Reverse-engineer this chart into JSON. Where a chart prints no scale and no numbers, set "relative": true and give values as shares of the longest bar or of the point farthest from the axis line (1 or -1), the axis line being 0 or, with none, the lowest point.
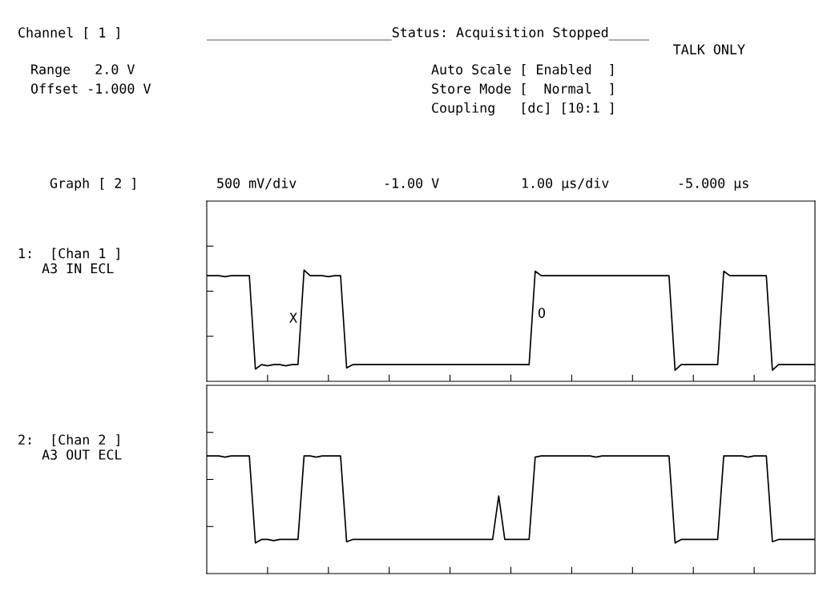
{
  "chart_data": [
    {
      "type": "other",
      "annotations": [
        "Channel [ 1 ]",
        "_______________________Status: Acquisition Stopped_____",
        "TALK ONLY",
        "Range   2.0 V",
        "Offset -1.000 V",
        "Auto Scale [ Enabled  ]",
        "Store Mode [  Normal  ]",
        "Coupling   [dc] [10:1 ]",
        "Graph [ 2 ]",
        "500 mV/div",
        "-1.00 V",
        "1.00 µs/div",
        "-5.000 µs",
        "X",
        "O"
      ]
    },
    {
      "type": "line",
      "relative": true,
      "ylabel": "1:  [Chan 1 ]\n   A3 IN ECL",
      "categories": [
        null,
        null,
        null,
        null,
        null,
        null,
        null,
        null,
        null,
        null,
        null,
        null,
        null,
        null,
        null,
        null,
        null,
        null,
        null,
        null,
        null,
        null,
        null,
        null,
        null,
        null,
        null,
        null,
        null,
        null,
        null,
        null,
        null,
        null,
        null,
        null,
        null,
        null,
        null,
        null,
        null,
        null,
        null,
        null,
        null,
        null,
        null,
        null,
        null,
        null,
        null,
        null,
        null,
        null,
        null,
        null,
        null,
        null,
        null,
        null,
        null,
        null,
        null,
        null,
        null,
        null,
        null,
        null,
        null,
        null,
        null,
        null,
        null,
        null,
        null,
        null,
        null,
        null,
        null,
        null,
        null,
        null,
        null,
        null,
        null,
        null,
        null,
        null,
        null,
        null,
        null,
        null,
        null,
        null,
        null,
        null,
        null,
        null,
        null,
        null,
        null
      ],
      "series": [
        {
          "color": "#000000",
          "values": [
            0.95,
            0.95,
            0.95,
            0.94,
            0.95,
            0.95,
            0.95,
            0.95,
            0.11,
            0.15,
            0.14,
            0.15,
            0.15,
            0.14,
            0.15,
            0.15,
            1,
            0.95,
            0.95,
            0.95,
            0.94,
            0.95,
            0.95,
            0.12,
            0.15,
            0.15,
            0.15,
            0.15,
            0.15,
            0.15,
            0.15,
            0.15,
            0.15,
            0.15,
            0.15,
            0.15,
            0.15,
            0.15,
            0.15,
            0.15,
            0.15,
            0.15,
            0.15,
            0.15,
            0.15,
            0.15,
            0.15,
            0.15,
            0.15,
            0.15,
            0.15,
            0.15,
            0.15,
            0.15,
            0.99,
            0.95,
            0.95,
            0.95,
            0.95,
            0.95,
            0.95,
            0.95,
            0.95,
            0.95,
            0.95,
            0.95,
            0.95,
            0.95,
            0.95,
            0.95,
            0.95,
            0.95,
            0.95,
            0.95,
            0.95,
            0.95,
            0.95,
            0.1,
            0.15,
            0.15,
            0.15,
            0.15,
            0.15,
            0.15,
            0.15,
            0.99,
            0.95,
            0.95,
            0.95,
            0.95,
            0.95,
            0.95,
            0.95,
            0.1,
            0.15,
            0.15,
            0.15,
            0.15,
            0.15,
            0.15,
            0.15
          ]
        }
      ]
    },
    {
      "type": "line",
      "relative": true,
      "ylabel": "2:  [Chan 2 ]\n   A3 OUT ECL",
      "categories": [
        null,
        null,
        null,
        null,
        null,
        null,
        null,
        null,
        null,
        null,
        null,
        null,
        null,
        null,
        null,
        null,
        null,
        null,
        null,
        null,
        null,
        null,
        null,
        null,
        null,
        null,
        null,
        null,
        null,
        null,
        null,
        null,
        null,
        null,
        null,
        null,
        null,
        null,
        null,
        null,
        null,
        null,
        null,
        null,
        null,
        null,
        null,
        null,
        null,
        null,
        null,
        null,
        null,
        null,
        null,
        null,
        null,
        null,
        null,
        null,
        null,
        null,
        null,
        null,
        null,
        null,
        null,
        null,
        null,
        null,
        null,
        null,
        null,
        null,
        null,
        null,
        null,
        null,
        null,
        null,
        null,
        null,
        null,
        null,
        null,
        null,
        null,
        null,
        null,
        null,
        null,
        null,
        null,
        null,
        null,
        null,
        null,
        null,
        null,
        null,
        null
      ],
      "series": [
        {
          "color": "#000000",
          "values": [
            1,
            1,
            1,
            0.99,
            1,
            1,
            1,
            1,
            0.26,
            0.29,
            0.29,
            0.28,
            0.29,
            0.29,
            0.29,
            0.29,
            1,
            1,
            0.99,
            1,
            1,
            1,
            1,
            0.27,
            0.29,
            0.29,
            0.29,
            0.29,
            0.29,
            0.29,
            0.29,
            0.29,
            0.29,
            0.29,
            0.29,
            0.29,
            0.29,
            0.29,
            0.29,
            0.29,
            0.29,
            0.29,
            0.29,
            0.29,
            0.29,
            0.29,
            0.29,
            0.29,
            0.66,
            0.29,
            0.29,
            0.29,
            0.29,
            0.29,
            0.99,
            1,
            1,
            1,
            1,
            1,
            1,
            1,
            1,
            1,
            0.99,
            1,
            1,
            1,
            1,
            1,
            1,
            1,
            1,
            1,
            1,
            1,
            1,
            0.26,
            0.29,
            0.29,
            0.29,
            0.29,
            0.29,
            0.29,
            0.29,
            1,
            1,
            1,
            1,
            0.99,
            1,
            1,
            1,
            0.27,
            0.29,
            0.29,
            0.29,
            0.29,
            0.29,
            0.29,
            0.29
          ]
        }
      ]
    }
  ]
}
